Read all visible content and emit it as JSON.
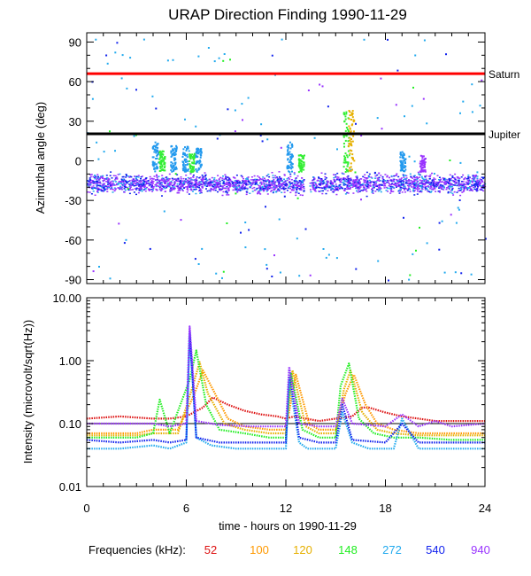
{
  "title": "URAP Direction Finding  1990-11-29",
  "chart_data": [
    {
      "type": "scatter",
      "name": "azimuth-panel",
      "ylabel": "Azimuthal angle (deg)",
      "xlim": [
        0,
        24
      ],
      "ylim": [
        -93,
        97
      ],
      "yticks": [
        90,
        60,
        30,
        0,
        -30,
        -60,
        -90
      ],
      "ytick_labels": [
        "90",
        "60",
        "30",
        "0",
        "-30",
        "-60",
        "-90"
      ],
      "reference_lines": [
        {
          "label": "Saturn",
          "y": 66,
          "color": "#ff0000"
        },
        {
          "label": "Jupiter",
          "y": 20.5,
          "color": "#000000"
        }
      ],
      "band": {
        "center": -17,
        "spread": 10,
        "note": "dense cluster of points near -15 deg across full day"
      },
      "bursts": [
        {
          "x": 4.1,
          "y_top": 15,
          "color": "#2299ee"
        },
        {
          "x": 4.5,
          "y_top": 8,
          "color": "#33ee33"
        },
        {
          "x": 5.2,
          "y_top": 12,
          "color": "#2299ee"
        },
        {
          "x": 5.9,
          "y_top": 12,
          "color": "#2299ee"
        },
        {
          "x": 6.3,
          "y_top": 6,
          "color": "#33ee33"
        },
        {
          "x": 6.7,
          "y_top": 10,
          "color": "#2299ee"
        },
        {
          "x": 12.2,
          "y_top": 15,
          "color": "#2299ee"
        },
        {
          "x": 12.9,
          "y_top": 5,
          "color": "#33ee33"
        },
        {
          "x": 15.6,
          "y_top": 38,
          "color": "#33ee33"
        },
        {
          "x": 15.9,
          "y_top": 40,
          "color": "#e6b000"
        },
        {
          "x": 19.0,
          "y_top": 8,
          "color": "#2299ee"
        },
        {
          "x": 20.2,
          "y_top": 5,
          "color": "#9933ff"
        }
      ]
    },
    {
      "type": "line",
      "name": "intensity-panel",
      "ylabel": "Intensity (microvolt/sqrt(Hz))",
      "xlabel": "time - hours on 1990-11-29",
      "yscale": "log",
      "ylim": [
        0.01,
        10.0
      ],
      "yticks": [
        10.0,
        1.0,
        0.1,
        0.01
      ],
      "ytick_labels": [
        "10.00",
        "1.00",
        "0.10",
        "0.01"
      ],
      "xticks": [
        0,
        6,
        12,
        18,
        24
      ],
      "xtick_labels": [
        "0",
        "6",
        "12",
        "18",
        "24"
      ],
      "reference_line": 0.1,
      "series": [
        {
          "name": "52",
          "color": "#dd1111",
          "x": [
            0,
            2,
            4,
            5,
            6,
            7,
            7.6,
            8.5,
            9.5,
            10.5,
            11.5,
            12,
            12.5,
            14,
            15,
            16,
            16.6,
            17,
            18,
            19,
            20,
            21,
            22,
            23,
            24
          ],
          "y": [
            0.12,
            0.13,
            0.12,
            0.12,
            0.13,
            0.18,
            0.26,
            0.2,
            0.16,
            0.14,
            0.13,
            0.12,
            0.13,
            0.11,
            0.12,
            0.13,
            0.18,
            0.18,
            0.15,
            0.13,
            0.12,
            0.11,
            0.11,
            0.11,
            0.11
          ]
        },
        {
          "name": "100",
          "color": "#ff9900",
          "x": [
            0,
            3,
            4,
            5.5,
            6.5,
            7.0,
            7.6,
            8.5,
            9.5,
            11,
            12,
            12.6,
            13.4,
            14,
            15,
            15.6,
            16.1,
            16.8,
            17.5,
            18.5,
            20,
            22,
            24
          ],
          "y": [
            0.07,
            0.07,
            0.08,
            0.08,
            0.3,
            0.7,
            0.35,
            0.12,
            0.09,
            0.08,
            0.08,
            0.6,
            0.1,
            0.08,
            0.08,
            0.3,
            0.6,
            0.2,
            0.1,
            0.08,
            0.07,
            0.07,
            0.07
          ]
        },
        {
          "name": "120",
          "color": "#e6b000",
          "x": [
            0,
            3,
            4,
            5.5,
            6.4,
            6.8,
            7.3,
            8.3,
            9.5,
            11,
            12,
            12.4,
            13.2,
            14,
            15,
            15.5,
            15.9,
            16.6,
            17.5,
            18.5,
            20,
            22,
            24
          ],
          "y": [
            0.065,
            0.065,
            0.07,
            0.07,
            0.4,
            0.95,
            0.3,
            0.1,
            0.08,
            0.07,
            0.07,
            0.7,
            0.09,
            0.07,
            0.07,
            0.35,
            0.7,
            0.15,
            0.08,
            0.07,
            0.065,
            0.065,
            0.065
          ]
        },
        {
          "name": "148",
          "color": "#22ee22",
          "x": [
            0,
            3,
            4,
            4.4,
            5,
            6.2,
            6.6,
            7.2,
            8.0,
            9.5,
            11,
            12,
            12.3,
            13.0,
            14,
            15,
            15.3,
            15.8,
            16.4,
            17.3,
            18.5,
            20,
            22,
            24
          ],
          "y": [
            0.06,
            0.06,
            0.07,
            0.24,
            0.07,
            0.5,
            1.45,
            0.2,
            0.08,
            0.07,
            0.06,
            0.06,
            0.65,
            0.08,
            0.06,
            0.06,
            0.4,
            0.9,
            0.12,
            0.07,
            0.06,
            0.06,
            0.055,
            0.055
          ]
        },
        {
          "name": "272",
          "color": "#22aaee",
          "x": [
            0,
            2,
            4,
            5,
            6,
            6.2,
            6.6,
            7.5,
            9,
            11,
            12,
            12.2,
            12.8,
            13.3,
            14,
            15,
            15.4,
            16,
            17,
            18.5,
            19,
            20,
            22,
            24
          ],
          "y": [
            0.04,
            0.04,
            0.045,
            0.04,
            0.05,
            2.5,
            0.06,
            0.045,
            0.04,
            0.04,
            0.04,
            0.5,
            0.05,
            0.04,
            0.04,
            0.04,
            0.15,
            0.05,
            0.04,
            0.04,
            0.12,
            0.04,
            0.04,
            0.04
          ]
        },
        {
          "name": "540",
          "color": "#1122ee",
          "x": [
            0,
            2,
            4,
            5,
            6,
            6.2,
            6.6,
            8,
            10,
            12,
            12.2,
            12.8,
            14,
            15,
            15.4,
            16,
            18,
            19,
            20,
            22,
            24
          ],
          "y": [
            0.055,
            0.05,
            0.055,
            0.05,
            0.055,
            3.0,
            0.06,
            0.05,
            0.05,
            0.05,
            0.7,
            0.06,
            0.05,
            0.05,
            0.2,
            0.055,
            0.05,
            0.1,
            0.05,
            0.05,
            0.05
          ]
        },
        {
          "name": "940",
          "color": "#9933ff",
          "x": [
            0,
            2,
            4,
            5,
            6,
            6.2,
            6.6,
            8,
            10,
            12,
            12.2,
            12.8,
            14,
            15,
            15.4,
            16,
            18,
            19,
            20,
            21,
            22,
            24
          ],
          "y": [
            0.1,
            0.1,
            0.1,
            0.09,
            0.1,
            3.5,
            0.11,
            0.095,
            0.09,
            0.09,
            0.8,
            0.1,
            0.09,
            0.09,
            0.25,
            0.1,
            0.09,
            0.14,
            0.09,
            0.11,
            0.09,
            0.1
          ]
        }
      ]
    }
  ],
  "legend": {
    "label": "Frequencies (kHz):",
    "items": [
      {
        "label": "52",
        "color": "#dd1111"
      },
      {
        "label": "100",
        "color": "#ff9900"
      },
      {
        "label": "120",
        "color": "#e6b000"
      },
      {
        "label": "148",
        "color": "#22ee22"
      },
      {
        "label": "272",
        "color": "#22aaee"
      },
      {
        "label": "540",
        "color": "#1122ee"
      },
      {
        "label": "940",
        "color": "#9933ff"
      }
    ]
  }
}
